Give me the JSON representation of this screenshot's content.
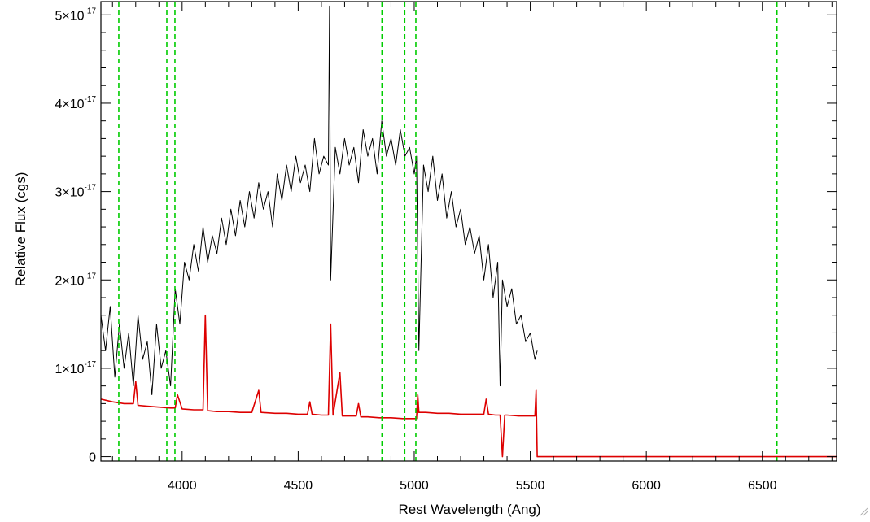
{
  "chart_data": {
    "type": "line",
    "title": "",
    "xlabel": "Rest Wavelength (Ang)",
    "ylabel": "Relative Flux (cgs)",
    "xlim": [
      3650,
      6820
    ],
    "ylim": [
      -0.05,
      5.15
    ],
    "y_scale_note": "values in units of 1e-17",
    "x_ticks": [
      {
        "value": 4000,
        "label": "4000"
      },
      {
        "value": 4500,
        "label": "4500"
      },
      {
        "value": 5000,
        "label": "5000"
      },
      {
        "value": 5500,
        "label": "5500"
      },
      {
        "value": 6000,
        "label": "6000"
      },
      {
        "value": 6500,
        "label": "6500"
      }
    ],
    "y_ticks": [
      {
        "value": 0,
        "mantissa": "0",
        "exponent": ""
      },
      {
        "value": 1,
        "mantissa": "1×10",
        "exponent": "-17"
      },
      {
        "value": 2,
        "mantissa": "2×10",
        "exponent": "-17"
      },
      {
        "value": 3,
        "mantissa": "3×10",
        "exponent": "-17"
      },
      {
        "value": 4,
        "mantissa": "4×10",
        "exponent": "-17"
      },
      {
        "value": 5,
        "mantissa": "5×10",
        "exponent": "-17"
      }
    ],
    "grid": false,
    "legend": "none",
    "series": [
      {
        "color": "#000000",
        "note": "observed spectrum (noisy continuum)",
        "x": [
          3650,
          3670,
          3690,
          3710,
          3730,
          3750,
          3770,
          3790,
          3810,
          3830,
          3850,
          3870,
          3890,
          3910,
          3930,
          3950,
          3970,
          3990,
          4010,
          4030,
          4050,
          4070,
          4090,
          4110,
          4130,
          4150,
          4170,
          4190,
          4210,
          4230,
          4250,
          4270,
          4290,
          4310,
          4330,
          4350,
          4370,
          4390,
          4410,
          4430,
          4450,
          4470,
          4490,
          4510,
          4530,
          4550,
          4570,
          4590,
          4610,
          4630,
          4635,
          4640,
          4660,
          4680,
          4700,
          4720,
          4740,
          4760,
          4780,
          4800,
          4820,
          4840,
          4860,
          4880,
          4900,
          4920,
          4940,
          4960,
          4980,
          5000,
          5010,
          5020,
          5040,
          5060,
          5080,
          5100,
          5120,
          5140,
          5160,
          5180,
          5200,
          5220,
          5240,
          5260,
          5280,
          5300,
          5320,
          5340,
          5360,
          5370,
          5380,
          5400,
          5420,
          5440,
          5460,
          5480,
          5500,
          5520,
          5530
        ],
        "y": [
          1.6,
          1.2,
          1.7,
          0.9,
          1.5,
          1.0,
          1.4,
          0.8,
          1.6,
          1.1,
          1.3,
          0.7,
          1.5,
          1.0,
          1.2,
          0.8,
          1.9,
          1.5,
          2.2,
          2.0,
          2.4,
          2.1,
          2.6,
          2.2,
          2.5,
          2.3,
          2.7,
          2.4,
          2.8,
          2.5,
          2.9,
          2.6,
          3.0,
          2.7,
          3.1,
          2.8,
          3.0,
          2.6,
          3.2,
          2.9,
          3.3,
          3.0,
          3.4,
          3.1,
          3.3,
          3.0,
          3.6,
          3.2,
          3.4,
          3.3,
          5.1,
          2.0,
          3.5,
          3.2,
          3.6,
          3.3,
          3.5,
          3.1,
          3.7,
          3.4,
          3.6,
          3.2,
          3.8,
          3.4,
          3.6,
          3.3,
          3.7,
          3.4,
          3.5,
          3.2,
          3.4,
          1.2,
          3.3,
          3.0,
          3.4,
          2.9,
          3.2,
          2.7,
          3.0,
          2.6,
          2.8,
          2.4,
          2.6,
          2.3,
          2.5,
          2.0,
          2.4,
          1.8,
          2.2,
          0.8,
          2.0,
          1.7,
          1.9,
          1.5,
          1.6,
          1.3,
          1.4,
          1.1,
          1.2
        ]
      },
      {
        "color": "#dd0000",
        "note": "model spectrum",
        "x": [
          3650,
          3700,
          3750,
          3790,
          3800,
          3810,
          3850,
          3900,
          3950,
          3970,
          3980,
          4000,
          4050,
          4090,
          4100,
          4110,
          4150,
          4200,
          4250,
          4300,
          4330,
          4340,
          4400,
          4450,
          4500,
          4540,
          4550,
          4560,
          4600,
          4630,
          4640,
          4650,
          4680,
          4690,
          4700,
          4750,
          4760,
          4770,
          4800,
          4850,
          4900,
          4950,
          5000,
          5010,
          5015,
          5020,
          5030,
          5050,
          5100,
          5150,
          5200,
          5250,
          5300,
          5310,
          5320,
          5350,
          5370,
          5380,
          5390,
          5400,
          5450,
          5500,
          5520,
          5525,
          5530,
          5540,
          5600,
          6000,
          6500,
          6820
        ],
        "y": [
          0.65,
          0.62,
          0.6,
          0.6,
          0.85,
          0.58,
          0.57,
          0.56,
          0.55,
          0.55,
          0.7,
          0.54,
          0.53,
          0.53,
          1.6,
          0.52,
          0.51,
          0.51,
          0.5,
          0.5,
          0.75,
          0.5,
          0.49,
          0.49,
          0.48,
          0.48,
          0.62,
          0.48,
          0.47,
          0.47,
          1.5,
          0.47,
          0.95,
          0.46,
          0.46,
          0.46,
          0.6,
          0.45,
          0.45,
          0.44,
          0.44,
          0.43,
          0.43,
          0.43,
          0.7,
          0.5,
          0.5,
          0.5,
          0.49,
          0.49,
          0.48,
          0.48,
          0.48,
          0.65,
          0.48,
          0.47,
          0.47,
          0.0,
          0.47,
          0.47,
          0.46,
          0.46,
          0.46,
          0.75,
          0.0,
          0.0,
          0.0,
          0.0,
          0.0,
          0.0
        ]
      }
    ],
    "vlines": [
      {
        "x": 3727,
        "color": "#00cc00",
        "style": "dashed"
      },
      {
        "x": 3934,
        "color": "#00cc00",
        "style": "dashed"
      },
      {
        "x": 3969,
        "color": "#00cc00",
        "style": "dashed"
      },
      {
        "x": 4861,
        "color": "#00cc00",
        "style": "dashed"
      },
      {
        "x": 4959,
        "color": "#00cc00",
        "style": "dashed"
      },
      {
        "x": 5007,
        "color": "#00cc00",
        "style": "dashed"
      },
      {
        "x": 6563,
        "color": "#00cc00",
        "style": "dashed"
      }
    ]
  }
}
